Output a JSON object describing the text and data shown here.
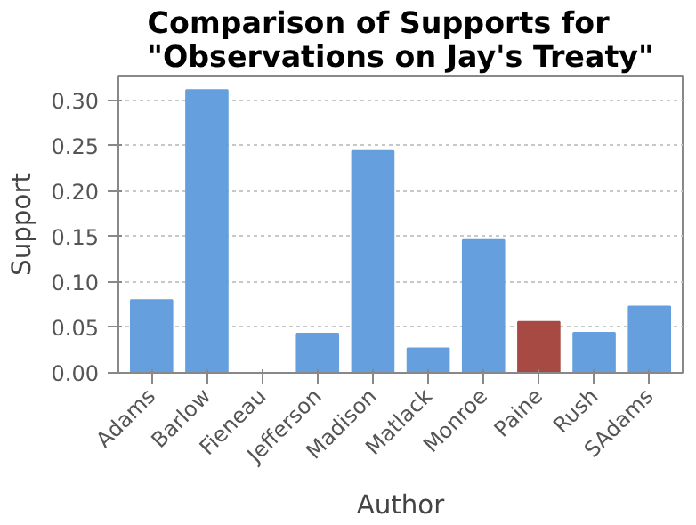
{
  "chart_data": {
    "type": "bar",
    "title": "Comparison of Supports for\n\"Observations on Jay's Treaty\"",
    "xlabel": "Author",
    "ylabel": "Support",
    "categories": [
      "Adams",
      "Barlow",
      "Fieneau",
      "Jefferson",
      "Madison",
      "Matlack",
      "Monroe",
      "Paine",
      "Rush",
      "SAdams"
    ],
    "values": [
      0.08,
      0.311,
      0,
      0.043,
      0.244,
      0.027,
      0.146,
      0.056,
      0.044,
      0.073
    ],
    "colors": [
      "#659fdd",
      "#659fdd",
      "#659fdd",
      "#659fdd",
      "#659fdd",
      "#659fdd",
      "#659fdd",
      "#a84a44",
      "#659fdd",
      "#659fdd"
    ],
    "ylim": [
      0,
      0.327
    ],
    "yticks": [
      {
        "value": 0,
        "label": "0.00"
      },
      {
        "value": 0.05,
        "label": "0.05"
      },
      {
        "value": 0.1,
        "label": "0.10"
      },
      {
        "value": 0.15,
        "label": "0.15"
      },
      {
        "value": 0.2,
        "label": "0.20"
      },
      {
        "value": 0.25,
        "label": "0.25"
      },
      {
        "value": 0.3,
        "label": "0.30"
      }
    ],
    "grid": "y"
  }
}
